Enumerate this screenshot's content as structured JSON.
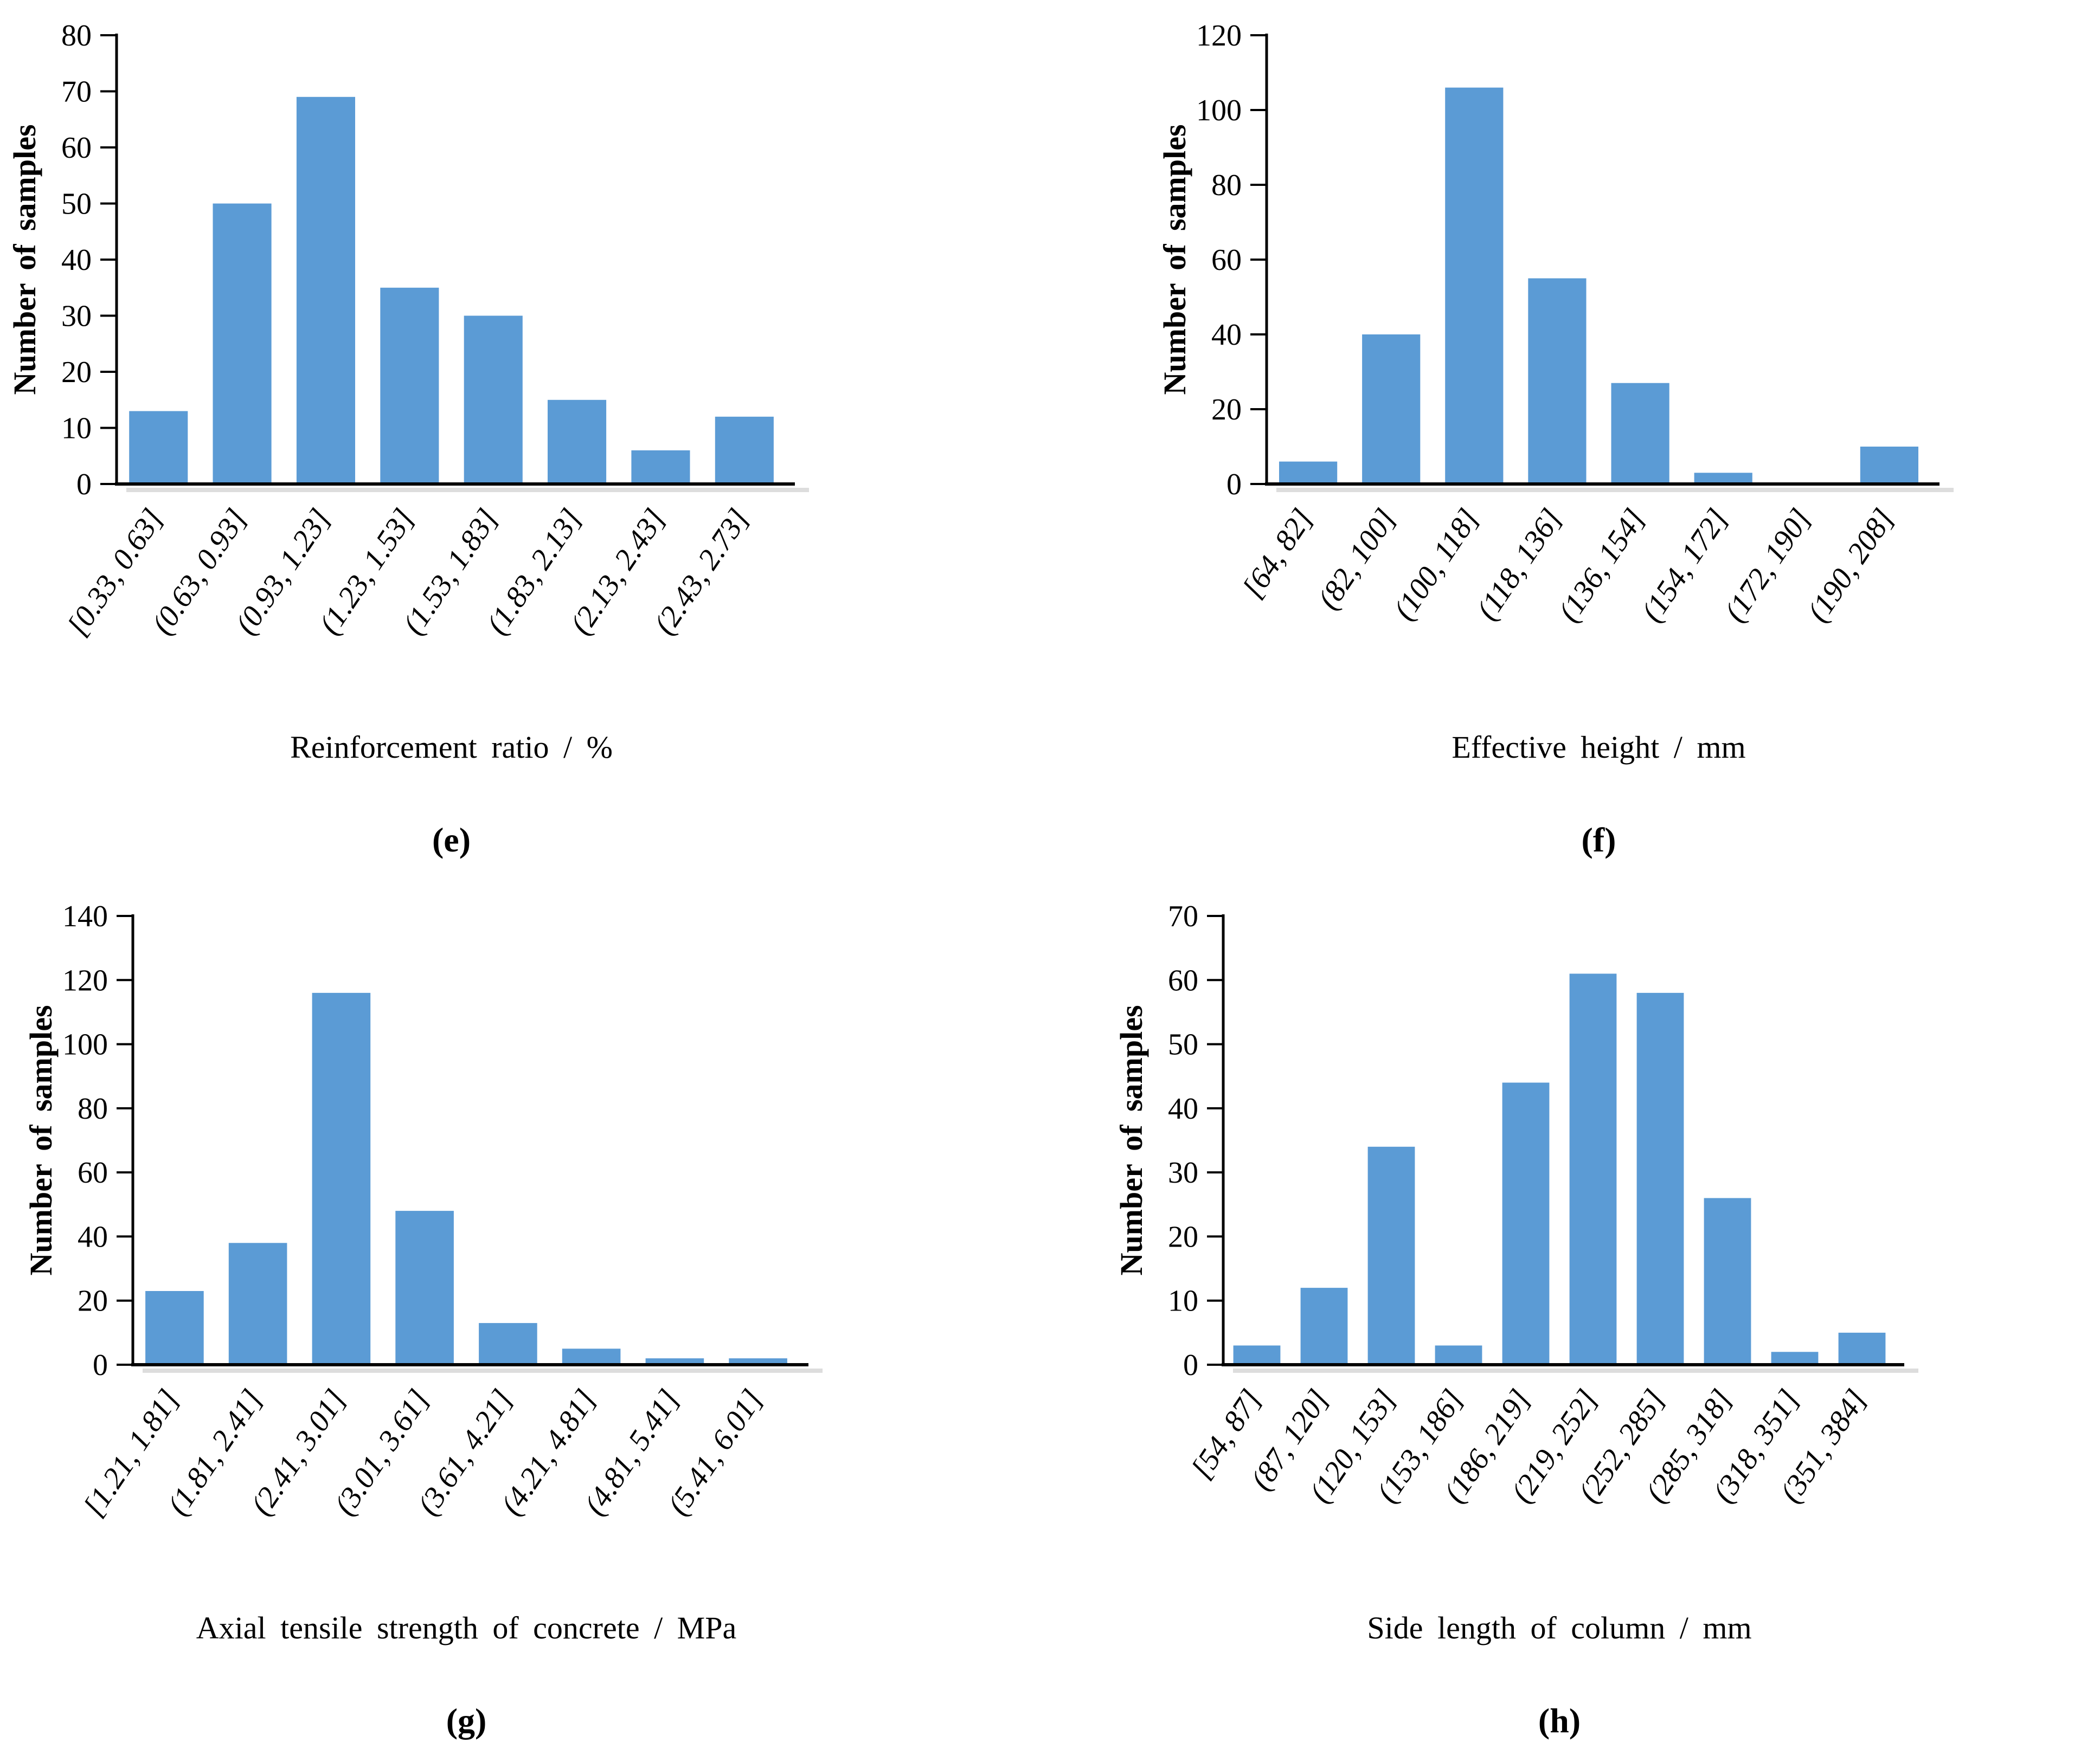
{
  "figure": {
    "background": "#ffffff",
    "bar_color": "#5b9bd5",
    "axis_color": "#000000",
    "shadow_color": "#d2d2d2"
  },
  "chart_data": [
    {
      "id": "e",
      "type": "bar",
      "panel_label": "(e)",
      "title": "",
      "ylabel": "Number of samples",
      "xlabel": "Reinforcement ratio / %",
      "categories": [
        "[0.33, 0.63]",
        "(0.63, 0.93]",
        "(0.93, 1.23]",
        "(1.23, 1.53]",
        "(1.53, 1.83]",
        "(1.83, 2.13]",
        "(2.13, 2.43]",
        "(2.43, 2.73]"
      ],
      "values": [
        13,
        50,
        69,
        35,
        30,
        15,
        6,
        12
      ],
      "ylim": [
        0,
        80
      ],
      "yticks": [
        0,
        10,
        20,
        30,
        40,
        50,
        60,
        70,
        80
      ],
      "grid": false,
      "legend_position": "none"
    },
    {
      "id": "f",
      "type": "bar",
      "panel_label": "(f)",
      "title": "",
      "ylabel": "Number of samples",
      "xlabel": "Effective height / mm",
      "categories": [
        "[64, 82]",
        "(82, 100]",
        "(100, 118]",
        "(118, 136]",
        "(136, 154]",
        "(154, 172]",
        "(172, 190]",
        "(190, 208]"
      ],
      "values": [
        6,
        40,
        106,
        55,
        27,
        3,
        0,
        10
      ],
      "ylim": [
        0,
        120
      ],
      "yticks": [
        0,
        20,
        40,
        60,
        80,
        100,
        120
      ],
      "grid": false,
      "legend_position": "none"
    },
    {
      "id": "g",
      "type": "bar",
      "panel_label": "(g)",
      "title": "",
      "ylabel": "Number of samples",
      "xlabel": "Axial tensile strength of concrete / MPa",
      "categories": [
        "[1.21, 1.81]",
        "(1.81, 2.41]",
        "(2.41, 3.01]",
        "(3.01, 3.61]",
        "(3.61, 4.21]",
        "(4.21, 4.81]",
        "(4.81, 5.41]",
        "(5.41, 6.01]"
      ],
      "values": [
        23,
        38,
        116,
        48,
        13,
        5,
        2,
        2
      ],
      "ylim": [
        0,
        140
      ],
      "yticks": [
        0,
        20,
        40,
        60,
        80,
        100,
        120,
        140
      ],
      "grid": false,
      "legend_position": "none"
    },
    {
      "id": "h",
      "type": "bar",
      "panel_label": "(h)",
      "title": "",
      "ylabel": "Number of samples",
      "xlabel": "Side length of column / mm",
      "categories": [
        "[54, 87]",
        "(87, 120]",
        "(120, 153]",
        "(153, 186]",
        "(186, 219]",
        "(219, 252]",
        "(252, 285]",
        "(285, 318]",
        "(318, 351]",
        "(351, 384]"
      ],
      "values": [
        3,
        12,
        34,
        3,
        44,
        61,
        58,
        26,
        2,
        5
      ],
      "ylim": [
        0,
        70
      ],
      "yticks": [
        0,
        10,
        20,
        30,
        40,
        50,
        60,
        70
      ],
      "grid": false,
      "legend_position": "none"
    }
  ]
}
